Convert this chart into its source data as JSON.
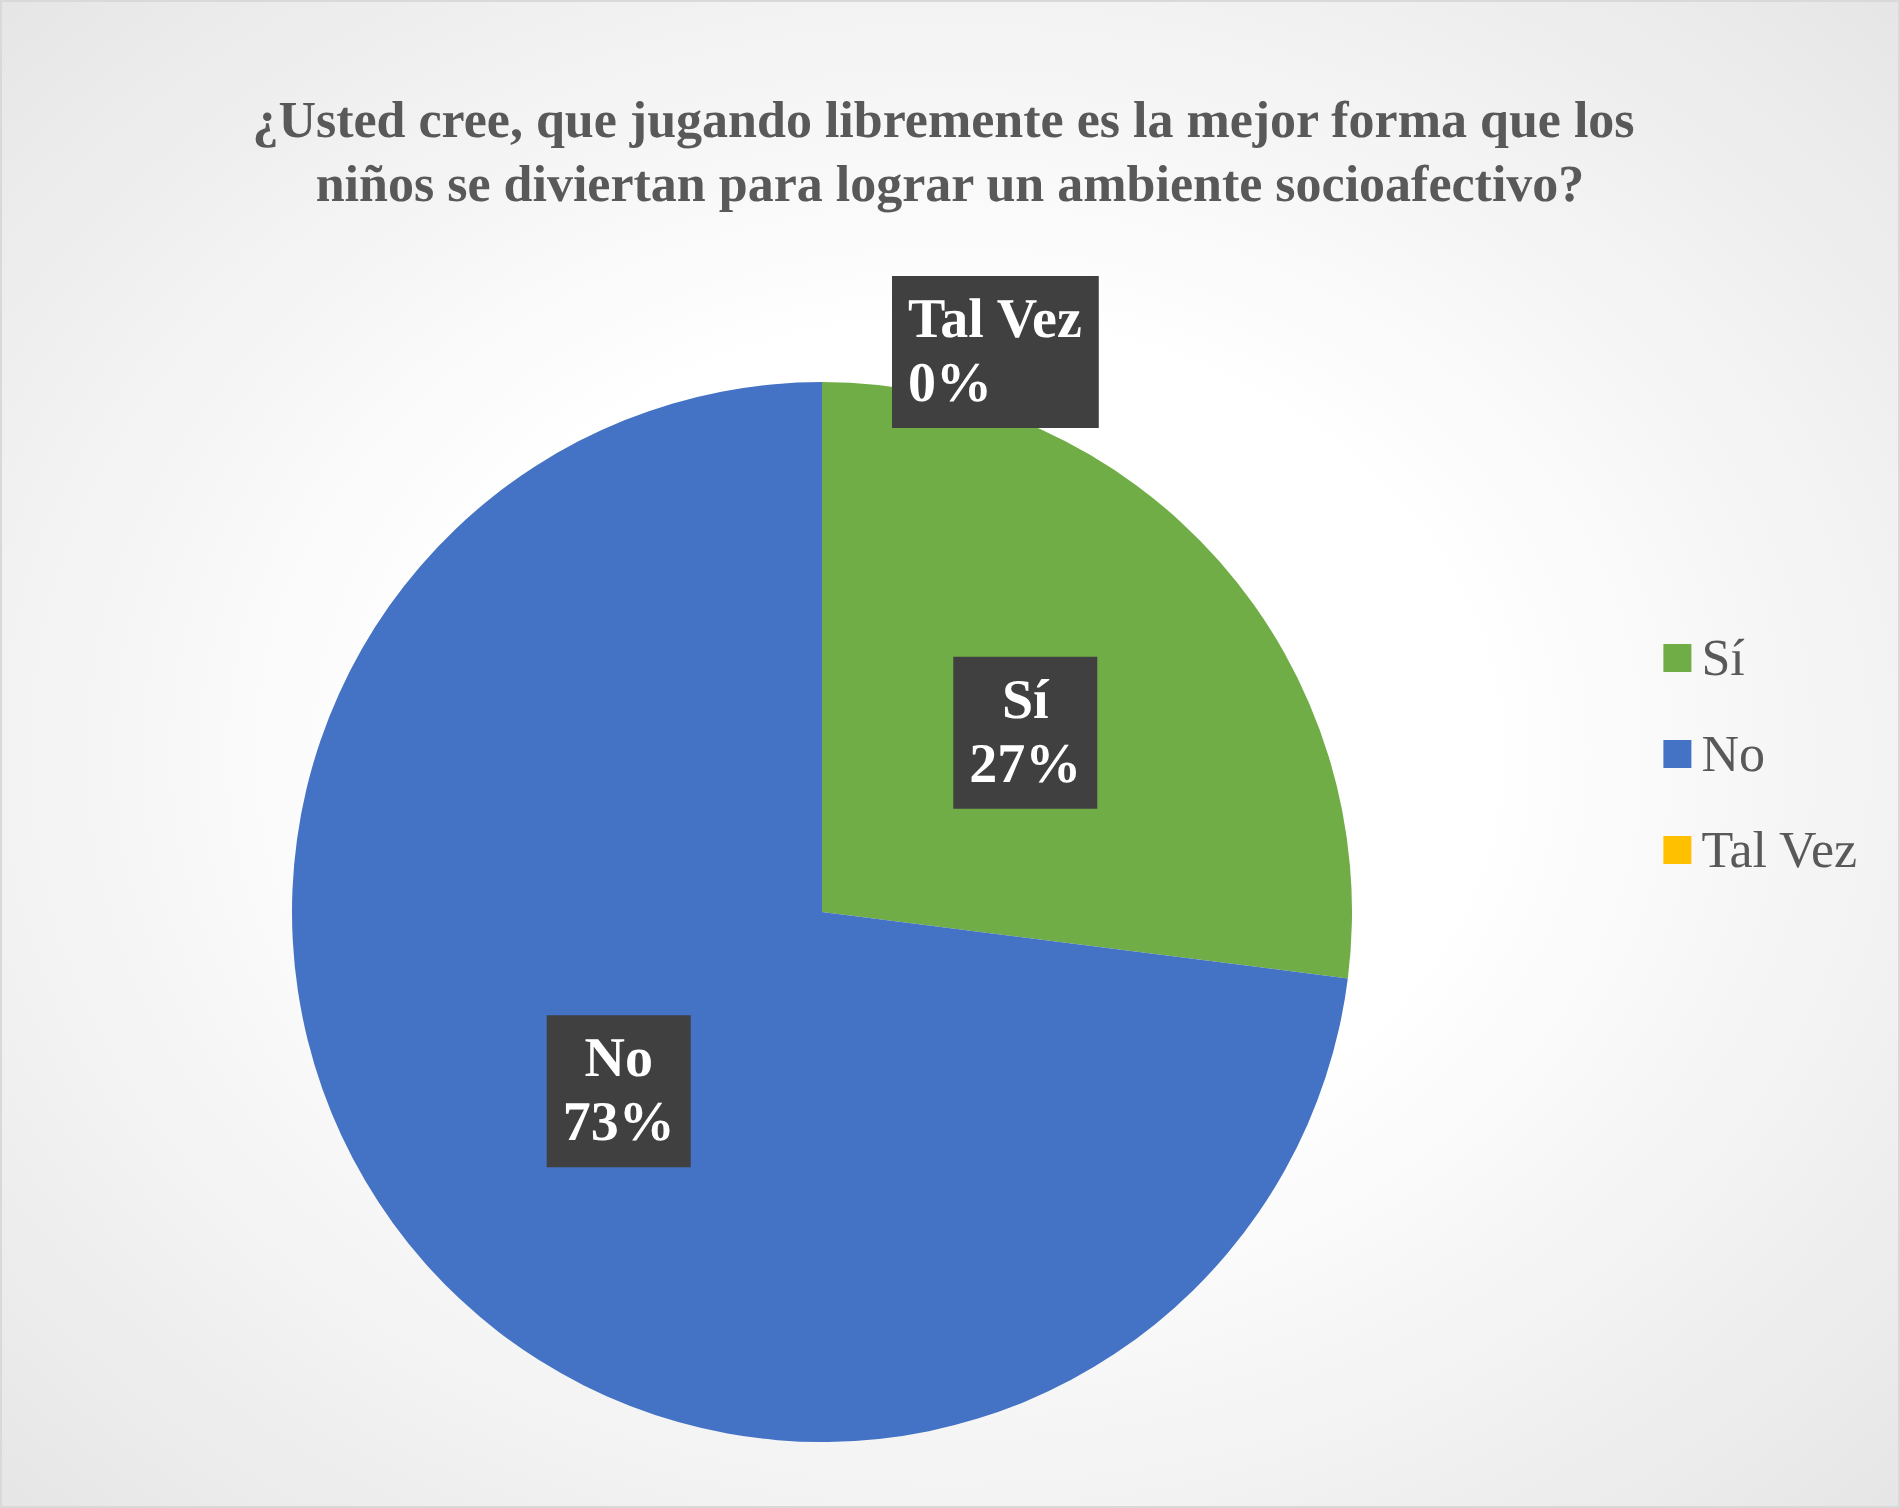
{
  "chart_data": {
    "type": "pie",
    "title": "¿Usted cree, que jugando libremente es la mejor forma que los niños se diviertan para lograr un ambiente socioafectivo?",
    "categories": [
      "Sí",
      "No",
      "Tal Vez"
    ],
    "values": [
      27,
      73,
      0
    ],
    "value_labels": [
      "27%",
      "73%",
      "0%"
    ],
    "colors": [
      "#70ad47",
      "#4472c4",
      "#ffc000"
    ],
    "legend": "right"
  }
}
